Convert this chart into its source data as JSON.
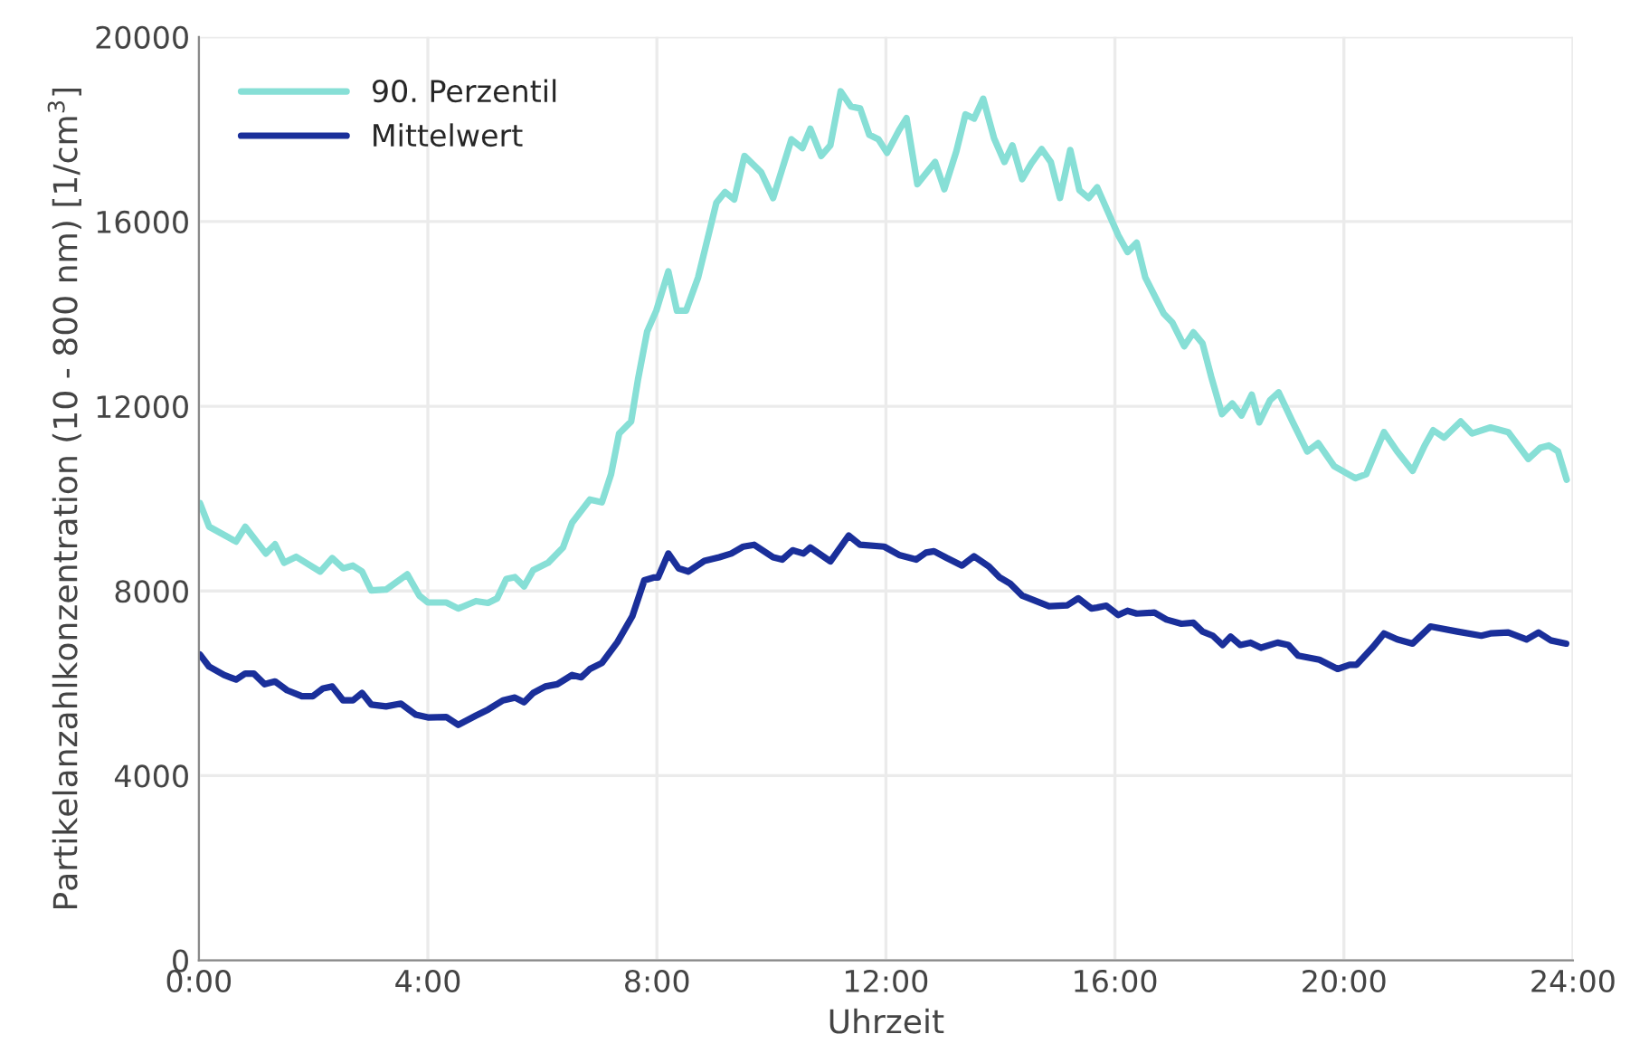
{
  "chart_data": {
    "type": "line",
    "xlabel": "Uhrzeit",
    "ylabel": "Partikelanzahlkonzentration (10 - 800 nm) [1/cm$^{3}$]",
    "xlim": [
      0,
      24
    ],
    "xticks": [
      {
        "value": 0,
        "label": "0:00"
      },
      {
        "value": 4,
        "label": "4:00"
      },
      {
        "value": 8,
        "label": "8:00"
      },
      {
        "value": 12,
        "label": "12:00"
      },
      {
        "value": 16,
        "label": "16:00"
      },
      {
        "value": 20,
        "label": "20:00"
      },
      {
        "value": 24,
        "label": "24:00"
      }
    ],
    "ylim": [
      0,
      20000
    ],
    "yticks": [
      0,
      4000,
      8000,
      12000,
      16000,
      20000
    ],
    "grid": true,
    "legend": "top left",
    "line_style": "solid",
    "marker": "none",
    "series": [
      {
        "name": "90. Perzentil",
        "color": "#87dfd6",
        "x": [
          0.02,
          0.18,
          0.65,
          0.81,
          1.17,
          1.33,
          1.49,
          1.7,
          2.12,
          2.33,
          2.52,
          2.69,
          2.85,
          3.01,
          3.27,
          3.64,
          3.85,
          4.0,
          4.32,
          4.53,
          4.84,
          5.05,
          5.21,
          5.37,
          5.52,
          5.68,
          5.84,
          6.1,
          6.36,
          6.52,
          6.83,
          7.04,
          7.2,
          7.34,
          7.55,
          7.67,
          7.83,
          7.99,
          8.2,
          8.35,
          8.51,
          8.72,
          9.04,
          9.19,
          9.35,
          9.53,
          9.82,
          10.03,
          10.35,
          10.54,
          10.68,
          10.87,
          11.03,
          11.21,
          11.39,
          11.55,
          11.71,
          11.87,
          12.02,
          12.23,
          12.36,
          12.55,
          12.86,
          13.02,
          13.23,
          13.39,
          13.54,
          13.7,
          13.89,
          14.07,
          14.21,
          14.38,
          14.54,
          14.72,
          14.88,
          15.04,
          15.22,
          15.38,
          15.54,
          15.69,
          15.85,
          16.06,
          16.22,
          16.38,
          16.53,
          16.85,
          17.0,
          17.21,
          17.37,
          17.53,
          17.68,
          17.87,
          18.05,
          18.21,
          18.39,
          18.52,
          18.71,
          18.86,
          19.1,
          19.36,
          19.55,
          19.83,
          20.2,
          20.39,
          20.7,
          20.93,
          21.2,
          21.41,
          21.56,
          21.75,
          22.04,
          22.24,
          22.56,
          22.87,
          23.22,
          23.43,
          23.58,
          23.74,
          23.89
        ],
        "values": [
          9900,
          9390,
          9070,
          9390,
          8810,
          9010,
          8610,
          8740,
          8420,
          8710,
          8490,
          8550,
          8420,
          8010,
          8030,
          8360,
          7900,
          7750,
          7750,
          7620,
          7780,
          7740,
          7840,
          8260,
          8300,
          8100,
          8450,
          8610,
          8940,
          9480,
          9980,
          9920,
          10530,
          11410,
          11670,
          12580,
          13620,
          14070,
          14920,
          14070,
          14070,
          14790,
          16410,
          16640,
          16480,
          17420,
          17070,
          16510,
          17780,
          17590,
          18010,
          17420,
          17650,
          18820,
          18490,
          18450,
          17880,
          17780,
          17490,
          17980,
          18240,
          16810,
          17290,
          16700,
          17520,
          18320,
          18230,
          18660,
          17800,
          17290,
          17650,
          16920,
          17260,
          17570,
          17290,
          16510,
          17550,
          16680,
          16510,
          16740,
          16290,
          15700,
          15340,
          15540,
          14790,
          14010,
          13820,
          13300,
          13600,
          13360,
          12650,
          11830,
          12060,
          11800,
          12250,
          11650,
          12130,
          12300,
          11670,
          11020,
          11200,
          10700,
          10440,
          10530,
          11440,
          11020,
          10600,
          11150,
          11480,
          11320,
          11670,
          11410,
          11540,
          11440,
          10860,
          11100,
          11150,
          11020,
          10410
        ]
      },
      {
        "name": "Mittelwert",
        "color": "#1a2f9a",
        "x": [
          0.02,
          0.18,
          0.44,
          0.65,
          0.81,
          0.96,
          1.15,
          1.33,
          1.54,
          1.8,
          1.99,
          2.17,
          2.33,
          2.52,
          2.69,
          2.85,
          3.01,
          3.27,
          3.53,
          3.79,
          4.0,
          4.32,
          4.53,
          4.84,
          5.05,
          5.31,
          5.52,
          5.68,
          5.84,
          6.05,
          6.26,
          6.52,
          6.68,
          6.83,
          7.04,
          7.31,
          7.57,
          7.78,
          7.94,
          8.02,
          8.2,
          8.38,
          8.55,
          8.83,
          9.09,
          9.3,
          9.51,
          9.7,
          10.03,
          10.19,
          10.37,
          10.56,
          10.68,
          11.03,
          11.35,
          11.55,
          11.97,
          12.23,
          12.53,
          12.7,
          12.84,
          13.07,
          13.33,
          13.54,
          13.8,
          13.99,
          14.17,
          14.38,
          14.85,
          15.17,
          15.36,
          15.59,
          15.69,
          15.85,
          16.06,
          16.22,
          16.38,
          16.69,
          16.9,
          17.16,
          17.37,
          17.53,
          17.71,
          17.88,
          18.02,
          18.19,
          18.37,
          18.55,
          18.84,
          19.03,
          19.2,
          19.57,
          19.89,
          20.1,
          20.22,
          20.51,
          20.7,
          20.93,
          21.2,
          21.51,
          21.98,
          22.4,
          22.56,
          22.87,
          23.19,
          23.4,
          23.61,
          23.88
        ],
        "values": [
          6620,
          6360,
          6180,
          6080,
          6210,
          6210,
          5980,
          6040,
          5850,
          5720,
          5720,
          5890,
          5930,
          5630,
          5630,
          5790,
          5540,
          5500,
          5560,
          5320,
          5260,
          5270,
          5100,
          5300,
          5430,
          5630,
          5690,
          5590,
          5790,
          5930,
          5980,
          6180,
          6130,
          6310,
          6440,
          6890,
          7450,
          8230,
          8290,
          8290,
          8810,
          8490,
          8420,
          8650,
          8730,
          8810,
          8960,
          9000,
          8730,
          8680,
          8880,
          8810,
          8940,
          8640,
          9200,
          9000,
          8960,
          8780,
          8680,
          8830,
          8860,
          8710,
          8550,
          8750,
          8530,
          8290,
          8160,
          7900,
          7670,
          7690,
          7840,
          7620,
          7640,
          7680,
          7480,
          7570,
          7510,
          7530,
          7380,
          7290,
          7310,
          7120,
          7030,
          6830,
          7010,
          6830,
          6880,
          6770,
          6880,
          6830,
          6600,
          6510,
          6310,
          6400,
          6400,
          6790,
          7080,
          6950,
          6860,
          7230,
          7120,
          7030,
          7080,
          7100,
          6950,
          7100,
          6930,
          6860
        ]
      }
    ]
  }
}
